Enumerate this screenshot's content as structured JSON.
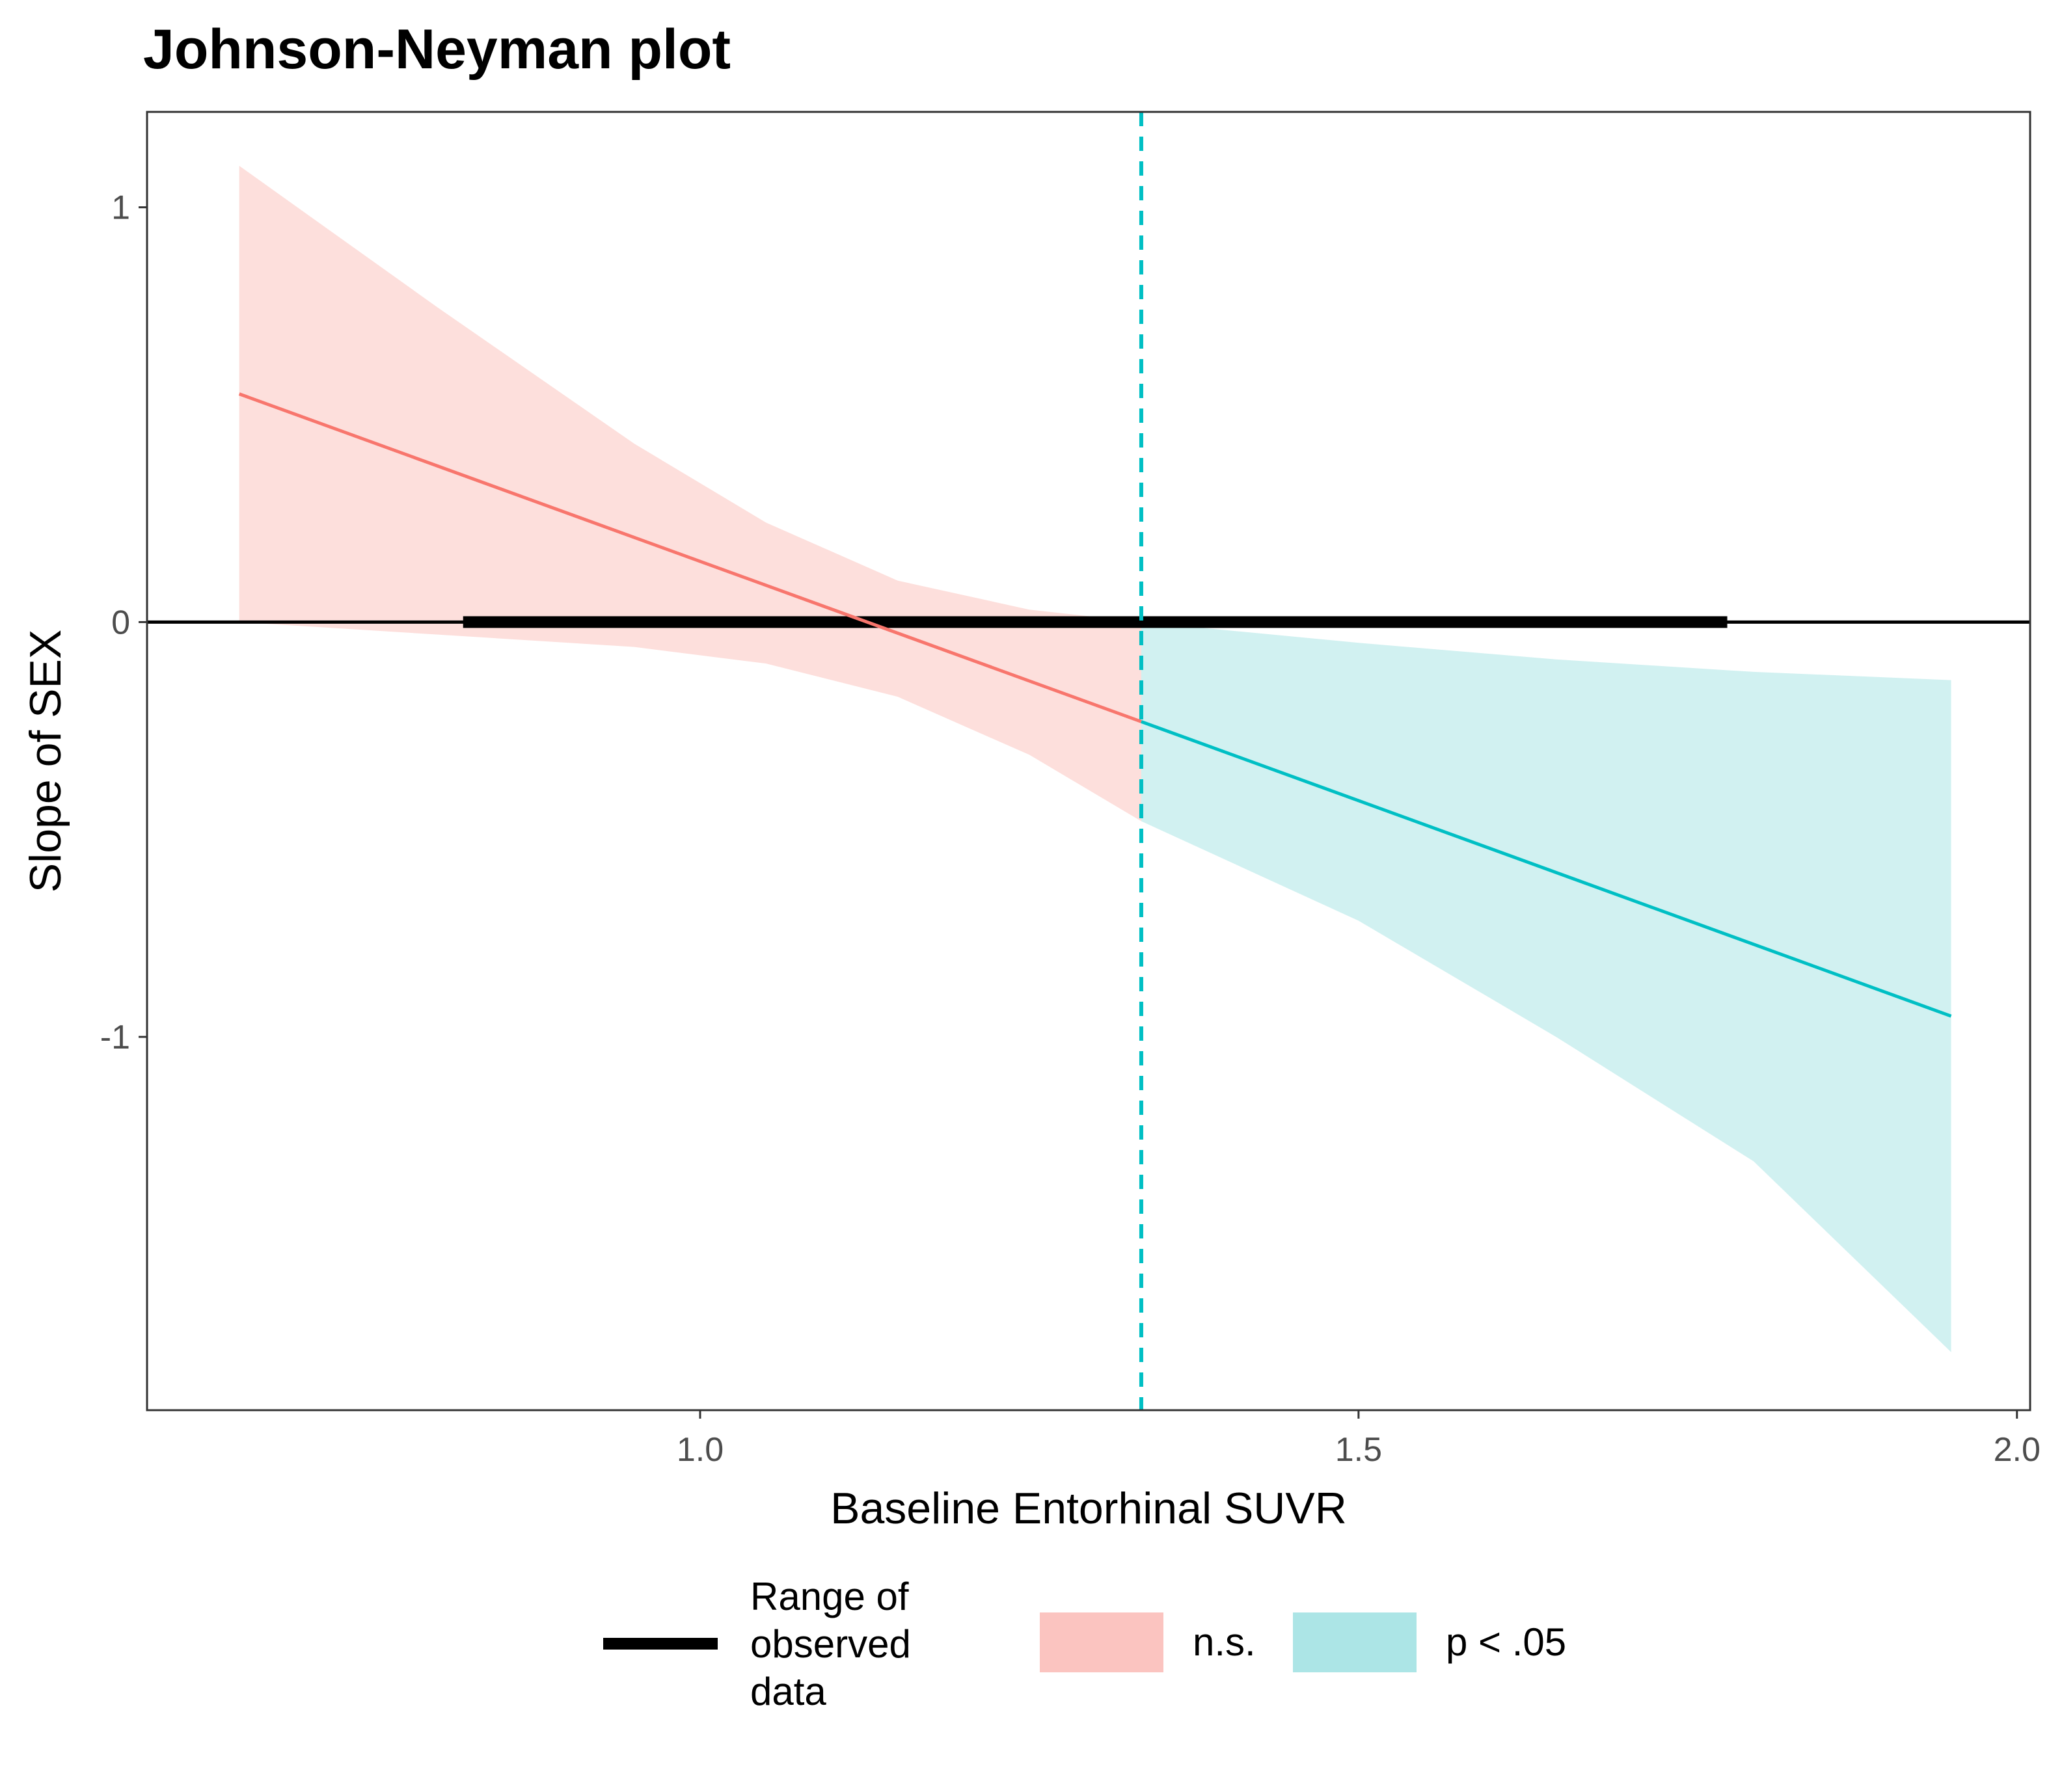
{
  "chart_data": {
    "type": "line",
    "title": "Johnson-Neyman plot",
    "xlabel": "Baseline Entorhinal SUVR",
    "ylabel": "Slope of SEX",
    "xlim": [
      0.58,
      2.01
    ],
    "ylim": [
      -1.9,
      1.23
    ],
    "x_ticks": [
      1.0,
      1.5,
      2.0
    ],
    "x_tick_labels": [
      "1.0",
      "1.5",
      "2.0"
    ],
    "y_ticks": [
      1,
      0,
      -1
    ],
    "y_tick_labels": [
      "1",
      "0",
      "-1"
    ],
    "grid": false,
    "legend_position": "bottom",
    "johnson_neyman_point": 1.335,
    "observed_range": [
      0.82,
      1.78
    ],
    "series": [
      {
        "name": "n.s.",
        "color": "#F8766D",
        "fill": "#FBC4C0",
        "x": [
          0.65,
          1.335
        ],
        "y": [
          0.55,
          -0.24
        ],
        "band_x": [
          0.65,
          0.8,
          0.95,
          1.05,
          1.15,
          1.25,
          1.335
        ],
        "band_lower": [
          0.0,
          -0.03,
          -0.06,
          -0.1,
          -0.18,
          -0.32,
          -0.48
        ],
        "band_upper": [
          1.1,
          0.76,
          0.43,
          0.24,
          0.1,
          0.03,
          0.0
        ]
      },
      {
        "name": "p < .05",
        "color": "#00BFC4",
        "fill": "#ACE5E6",
        "x": [
          1.335,
          1.95
        ],
        "y": [
          -0.24,
          -0.95
        ],
        "band_x": [
          1.335,
          1.5,
          1.65,
          1.8,
          1.95
        ],
        "band_lower": [
          -0.48,
          -0.72,
          -1.0,
          -1.3,
          -1.76
        ],
        "band_upper": [
          0.0,
          -0.05,
          -0.09,
          -0.12,
          -0.14
        ]
      }
    ]
  },
  "legend": {
    "range_label_lines": [
      "Range of",
      "observed",
      "data"
    ],
    "ns_label": "n.s.",
    "sig_label": "p < .05",
    "range_color": "#000000"
  }
}
